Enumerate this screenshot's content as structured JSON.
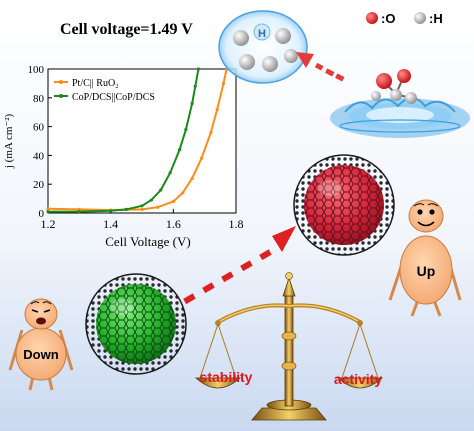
{
  "header": {
    "cell_voltage": "Cell voltage=1.49 V"
  },
  "legend_atoms": {
    "oxygen": ":O",
    "hydrogen": ":H"
  },
  "h2_bubble_label": "H",
  "characters": {
    "up": "Up",
    "down": "Down"
  },
  "balance": {
    "left_label": "stability",
    "right_label": "activity"
  },
  "colors": {
    "oxygen": "#e0161b",
    "hydrogen": "#bfbfbf",
    "orange_series": "#ff8c1a",
    "green_series": "#1a8a1a",
    "label_red": "#e0161b",
    "arrow_red": "#e02020"
  },
  "chart_data": {
    "type": "line",
    "xlabel": "Cell Voltage (V)",
    "ylabel": "j (mA cm⁻²)",
    "xlim": [
      1.2,
      1.8
    ],
    "ylim": [
      0,
      100
    ],
    "x_ticks": [
      "1.2",
      "1.4",
      "1.6",
      "1.8"
    ],
    "y_ticks": [
      "0",
      "20",
      "40",
      "60",
      "80",
      "100"
    ],
    "legend_position": "top-left",
    "series": [
      {
        "name": "Pt/C|| RuO₂",
        "color": "#ff8c1a",
        "points": [
          [
            1.2,
            3
          ],
          [
            1.3,
            2.5
          ],
          [
            1.4,
            2
          ],
          [
            1.5,
            2.5
          ],
          [
            1.55,
            4
          ],
          [
            1.6,
            8
          ],
          [
            1.63,
            14
          ],
          [
            1.66,
            24
          ],
          [
            1.69,
            38
          ],
          [
            1.72,
            56
          ],
          [
            1.74,
            72
          ],
          [
            1.76,
            90
          ],
          [
            1.77,
            100
          ]
        ]
      },
      {
        "name": "CoP/DCS||CoP/DCS",
        "color": "#1a8a1a",
        "points": [
          [
            1.2,
            1
          ],
          [
            1.3,
            1
          ],
          [
            1.4,
            1.5
          ],
          [
            1.45,
            2.5
          ],
          [
            1.5,
            5
          ],
          [
            1.53,
            9
          ],
          [
            1.56,
            16
          ],
          [
            1.59,
            28
          ],
          [
            1.62,
            44
          ],
          [
            1.64,
            58
          ],
          [
            1.66,
            76
          ],
          [
            1.67,
            88
          ],
          [
            1.68,
            100
          ]
        ]
      }
    ]
  }
}
